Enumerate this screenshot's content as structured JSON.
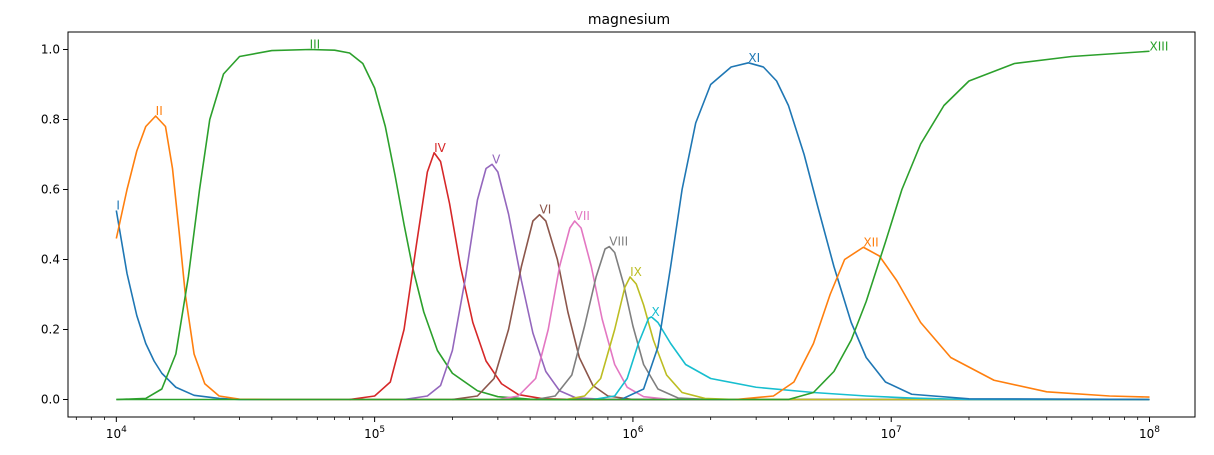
{
  "chart_data": {
    "type": "line",
    "title": "magnesium",
    "xlabel": "",
    "ylabel": "",
    "xscale": "log",
    "xlim": [
      6500,
      150000000
    ],
    "ylim": [
      -0.05,
      1.05
    ],
    "grid": false,
    "legend": "none",
    "x_ticks": [
      {
        "value": 10000,
        "base": "10",
        "exp": "4"
      },
      {
        "value": 100000,
        "base": "10",
        "exp": "5"
      },
      {
        "value": 1000000,
        "base": "10",
        "exp": "6"
      },
      {
        "value": 10000000,
        "base": "10",
        "exp": "7"
      },
      {
        "value": 100000000,
        "base": "10",
        "exp": "8"
      }
    ],
    "y_ticks": [
      {
        "value": 0.0,
        "label": "0.0"
      },
      {
        "value": 0.2,
        "label": "0.2"
      },
      {
        "value": 0.4,
        "label": "0.4"
      },
      {
        "value": 0.6,
        "label": "0.6"
      },
      {
        "value": 0.8,
        "label": "0.8"
      },
      {
        "value": 1.0,
        "label": "1.0"
      }
    ],
    "series": [
      {
        "name": "I",
        "color": "#1f77b4",
        "peak_x": 10000,
        "peak_y": 0.54,
        "points": [
          [
            10000,
            0.54
          ],
          [
            11000,
            0.36
          ],
          [
            12000,
            0.24
          ],
          [
            13000,
            0.16
          ],
          [
            14000,
            0.11
          ],
          [
            15000,
            0.075
          ],
          [
            17000,
            0.035
          ],
          [
            20000,
            0.012
          ],
          [
            25000,
            0.003
          ],
          [
            30000,
            0.0
          ],
          [
            100000000,
            0.0
          ]
        ]
      },
      {
        "name": "II",
        "color": "#ff7f0e",
        "peak_x": 14200,
        "peak_y": 0.81,
        "points": [
          [
            10000,
            0.46
          ],
          [
            11000,
            0.6
          ],
          [
            12000,
            0.71
          ],
          [
            13000,
            0.78
          ],
          [
            14200,
            0.81
          ],
          [
            15500,
            0.78
          ],
          [
            16500,
            0.66
          ],
          [
            17500,
            0.48
          ],
          [
            18500,
            0.3
          ],
          [
            20000,
            0.13
          ],
          [
            22000,
            0.045
          ],
          [
            25000,
            0.01
          ],
          [
            30000,
            0.001
          ],
          [
            40000,
            0.0
          ],
          [
            100000000,
            0.0
          ]
        ]
      },
      {
        "name": "III",
        "color": "#2ca02c",
        "peak_x": 56000,
        "peak_y": 1.0,
        "points": [
          [
            10000,
            0.0
          ],
          [
            13000,
            0.003
          ],
          [
            15000,
            0.03
          ],
          [
            17000,
            0.13
          ],
          [
            19000,
            0.35
          ],
          [
            21000,
            0.6
          ],
          [
            23000,
            0.8
          ],
          [
            26000,
            0.93
          ],
          [
            30000,
            0.98
          ],
          [
            40000,
            0.997
          ],
          [
            56000,
            1.0
          ],
          [
            70000,
            0.998
          ],
          [
            80000,
            0.99
          ],
          [
            90000,
            0.96
          ],
          [
            100000,
            0.89
          ],
          [
            110000,
            0.78
          ],
          [
            120000,
            0.64
          ],
          [
            130000,
            0.5
          ],
          [
            140000,
            0.38
          ],
          [
            155000,
            0.25
          ],
          [
            175000,
            0.14
          ],
          [
            200000,
            0.075
          ],
          [
            250000,
            0.025
          ],
          [
            300000,
            0.008
          ],
          [
            400000,
            0.001
          ],
          [
            500000,
            0.0
          ],
          [
            100000000,
            0.0
          ]
        ]
      },
      {
        "name": "IV",
        "color": "#d62728",
        "peak_x": 170000,
        "peak_y": 0.705,
        "points": [
          [
            80000,
            0.0
          ],
          [
            100000,
            0.01
          ],
          [
            115000,
            0.05
          ],
          [
            130000,
            0.2
          ],
          [
            145000,
            0.44
          ],
          [
            160000,
            0.65
          ],
          [
            170000,
            0.705
          ],
          [
            180000,
            0.68
          ],
          [
            195000,
            0.56
          ],
          [
            215000,
            0.38
          ],
          [
            240000,
            0.22
          ],
          [
            270000,
            0.11
          ],
          [
            310000,
            0.045
          ],
          [
            360000,
            0.014
          ],
          [
            450000,
            0.002
          ],
          [
            600000,
            0.0
          ],
          [
            100000000,
            0.0
          ]
        ]
      },
      {
        "name": "V",
        "color": "#9467bd",
        "peak_x": 285000,
        "peak_y": 0.672,
        "points": [
          [
            130000,
            0.0
          ],
          [
            160000,
            0.01
          ],
          [
            180000,
            0.04
          ],
          [
            200000,
            0.14
          ],
          [
            225000,
            0.35
          ],
          [
            250000,
            0.57
          ],
          [
            270000,
            0.66
          ],
          [
            285000,
            0.672
          ],
          [
            300000,
            0.65
          ],
          [
            330000,
            0.53
          ],
          [
            370000,
            0.34
          ],
          [
            410000,
            0.19
          ],
          [
            460000,
            0.08
          ],
          [
            520000,
            0.025
          ],
          [
            600000,
            0.005
          ],
          [
            800000,
            0.0
          ],
          [
            100000000,
            0.0
          ]
        ]
      },
      {
        "name": "VI",
        "color": "#8c564b",
        "peak_x": 435000,
        "peak_y": 0.528,
        "points": [
          [
            200000,
            0.0
          ],
          [
            250000,
            0.01
          ],
          [
            290000,
            0.06
          ],
          [
            330000,
            0.2
          ],
          [
            370000,
            0.38
          ],
          [
            410000,
            0.51
          ],
          [
            435000,
            0.528
          ],
          [
            460000,
            0.51
          ],
          [
            510000,
            0.4
          ],
          [
            560000,
            0.25
          ],
          [
            620000,
            0.12
          ],
          [
            700000,
            0.04
          ],
          [
            800000,
            0.01
          ],
          [
            1000000,
            0.0
          ],
          [
            100000000,
            0.0
          ]
        ]
      },
      {
        "name": "VII",
        "color": "#e377c2",
        "peak_x": 595000,
        "peak_y": 0.51,
        "points": [
          [
            300000,
            0.0
          ],
          [
            360000,
            0.01
          ],
          [
            420000,
            0.06
          ],
          [
            470000,
            0.2
          ],
          [
            520000,
            0.38
          ],
          [
            570000,
            0.49
          ],
          [
            595000,
            0.51
          ],
          [
            630000,
            0.49
          ],
          [
            690000,
            0.38
          ],
          [
            760000,
            0.23
          ],
          [
            850000,
            0.1
          ],
          [
            950000,
            0.035
          ],
          [
            1100000,
            0.008
          ],
          [
            1400000,
            0.0
          ],
          [
            100000000,
            0.0
          ]
        ]
      },
      {
        "name": "VIII",
        "color": "#7f7f7f",
        "peak_x": 810000,
        "peak_y": 0.437,
        "points": [
          [
            420000,
            0.0
          ],
          [
            500000,
            0.01
          ],
          [
            580000,
            0.07
          ],
          [
            650000,
            0.21
          ],
          [
            720000,
            0.35
          ],
          [
            780000,
            0.43
          ],
          [
            810000,
            0.437
          ],
          [
            850000,
            0.42
          ],
          [
            920000,
            0.33
          ],
          [
            1000000,
            0.21
          ],
          [
            1100000,
            0.1
          ],
          [
            1250000,
            0.03
          ],
          [
            1500000,
            0.004
          ],
          [
            2000000,
            0.0
          ],
          [
            100000000,
            0.0
          ]
        ]
      },
      {
        "name": "IX",
        "color": "#bcbd22",
        "peak_x": 975000,
        "peak_y": 0.35,
        "points": [
          [
            550000,
            0.0
          ],
          [
            650000,
            0.01
          ],
          [
            750000,
            0.06
          ],
          [
            850000,
            0.2
          ],
          [
            930000,
            0.32
          ],
          [
            975000,
            0.35
          ],
          [
            1030000,
            0.33
          ],
          [
            1100000,
            0.27
          ],
          [
            1200000,
            0.17
          ],
          [
            1350000,
            0.07
          ],
          [
            1550000,
            0.02
          ],
          [
            1900000,
            0.003
          ],
          [
            2500000,
            0.0
          ],
          [
            100000000,
            0.0
          ]
        ]
      },
      {
        "name": "X",
        "color": "#17becf",
        "peak_x": 1180000,
        "peak_y": 0.236,
        "points": [
          [
            700000,
            0.0
          ],
          [
            850000,
            0.01
          ],
          [
            950000,
            0.06
          ],
          [
            1050000,
            0.16
          ],
          [
            1150000,
            0.232
          ],
          [
            1180000,
            0.236
          ],
          [
            1250000,
            0.22
          ],
          [
            1400000,
            0.16
          ],
          [
            1600000,
            0.1
          ],
          [
            2000000,
            0.06
          ],
          [
            3000000,
            0.035
          ],
          [
            5000000,
            0.02
          ],
          [
            8000000,
            0.01
          ],
          [
            12000000,
            0.004
          ],
          [
            20000000,
            0.0
          ],
          [
            100000000,
            0.0
          ]
        ]
      },
      {
        "name": "XI",
        "color": "#1f77b4",
        "peak_x": 2800000,
        "peak_y": 0.962,
        "points": [
          [
            900000,
            0.0
          ],
          [
            1100000,
            0.03
          ],
          [
            1250000,
            0.15
          ],
          [
            1400000,
            0.38
          ],
          [
            1550000,
            0.6
          ],
          [
            1750000,
            0.79
          ],
          [
            2000000,
            0.9
          ],
          [
            2400000,
            0.95
          ],
          [
            2800000,
            0.962
          ],
          [
            3200000,
            0.95
          ],
          [
            3600000,
            0.91
          ],
          [
            4000000,
            0.84
          ],
          [
            4600000,
            0.7
          ],
          [
            5200000,
            0.55
          ],
          [
            6000000,
            0.38
          ],
          [
            7000000,
            0.22
          ],
          [
            8000000,
            0.12
          ],
          [
            9500000,
            0.05
          ],
          [
            12000000,
            0.015
          ],
          [
            20000000,
            0.002
          ],
          [
            100000000,
            0.0
          ]
        ]
      },
      {
        "name": "XII",
        "color": "#ff7f0e",
        "peak_x": 7800000,
        "peak_y": 0.435,
        "points": [
          [
            2500000,
            0.0
          ],
          [
            3500000,
            0.01
          ],
          [
            4200000,
            0.05
          ],
          [
            5000000,
            0.16
          ],
          [
            5800000,
            0.3
          ],
          [
            6600000,
            0.4
          ],
          [
            7800000,
            0.435
          ],
          [
            9000000,
            0.41
          ],
          [
            10500000,
            0.34
          ],
          [
            13000000,
            0.22
          ],
          [
            17000000,
            0.12
          ],
          [
            25000000,
            0.055
          ],
          [
            40000000,
            0.022
          ],
          [
            70000000,
            0.01
          ],
          [
            100000000,
            0.007
          ]
        ]
      },
      {
        "name": "XIII",
        "color": "#2ca02c",
        "peak_x": 100000000,
        "peak_y": 0.995,
        "points": [
          [
            10000,
            0.0
          ],
          [
            4000000,
            0.0
          ],
          [
            5000000,
            0.02
          ],
          [
            6000000,
            0.08
          ],
          [
            7000000,
            0.17
          ],
          [
            8000000,
            0.28
          ],
          [
            9500000,
            0.45
          ],
          [
            11000000,
            0.6
          ],
          [
            13000000,
            0.73
          ],
          [
            16000000,
            0.84
          ],
          [
            20000000,
            0.91
          ],
          [
            30000000,
            0.96
          ],
          [
            50000000,
            0.98
          ],
          [
            100000000,
            0.995
          ]
        ]
      }
    ]
  }
}
